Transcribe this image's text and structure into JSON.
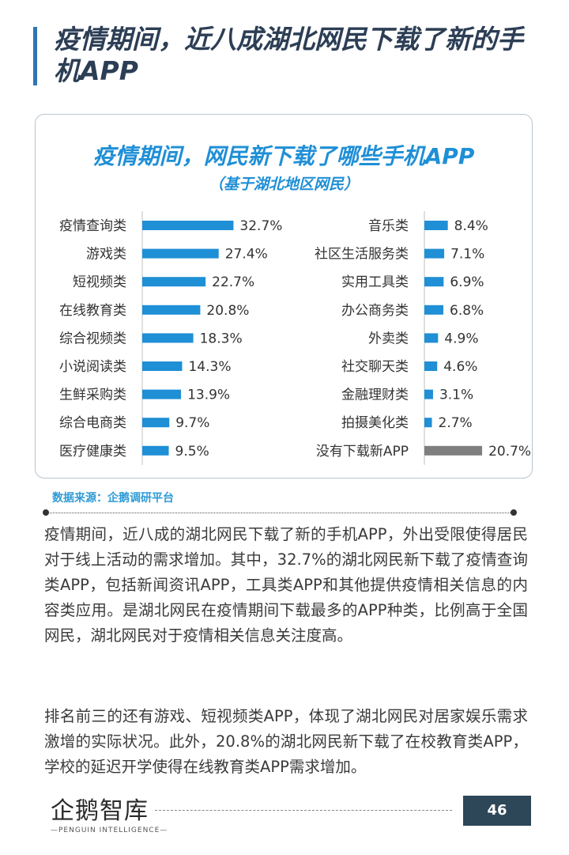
{
  "page_title": "疫情期间，近八成湖北网民下载了新的手机APP",
  "chart_data": {
    "type": "bar",
    "orientation": "horizontal",
    "title": "疫情期间，网民新下载了哪些手机APP",
    "subtitle": "（基于湖北地区网民）",
    "unit": "%",
    "colors": {
      "default": "#1f8fd6",
      "highlight": "#7f7f7f"
    },
    "left_column": {
      "categories": [
        "疫情查询类",
        "游戏类",
        "短视频类",
        "在线教育类",
        "综合视频类",
        "小说阅读类",
        "生鲜采购类",
        "综合电商类",
        "医疗健康类"
      ],
      "values": [
        32.7,
        27.4,
        22.7,
        20.8,
        18.3,
        14.3,
        13.9,
        9.7,
        9.5
      ],
      "labels": [
        "32.7%",
        "27.4%",
        "22.7%",
        "20.8%",
        "18.3%",
        "14.3%",
        "13.9%",
        "9.7%",
        "9.5%"
      ]
    },
    "right_column": {
      "categories": [
        "音乐类",
        "社区生活服务类",
        "实用工具类",
        "办公商务类",
        "外卖类",
        "社交聊天类",
        "金融理财类",
        "拍摄美化类",
        "没有下载新APP"
      ],
      "values": [
        8.4,
        7.1,
        6.9,
        6.8,
        4.9,
        4.6,
        3.1,
        2.7,
        20.7
      ],
      "labels": [
        "8.4%",
        "7.1%",
        "6.9%",
        "6.8%",
        "4.9%",
        "4.6%",
        "3.1%",
        "2.7%",
        "20.7%"
      ],
      "highlight_index": 8
    }
  },
  "source": "数据来源：企鹅调研平台",
  "paragraphs": [
    "疫情期间，近八成的湖北网民下载了新的手机APP，外出受限使得居民对于线上活动的需求增加。其中，32.7%的湖北网民新下载了疫情查询类APP，包括新闻资讯APP，工具类APP和其他提供疫情相关信息的内容类应用。是湖北网民在疫情期间下载最多的APP种类，比例高于全国网民，湖北网民对于疫情相关信息关注度高。",
    "排名前三的还有游戏、短视频类APP，体现了湖北网民对居家娱乐需求激增的实际状况。此外，20.8%的湖北网民新下载了在校教育类APP，学校的延迟开学使得在线教育类APP需求增加。"
  ],
  "footer": {
    "logo_cn": "企鹅智库",
    "logo_en": "—PENGUIN  INTELLIGENCE—",
    "page_number": "46"
  }
}
